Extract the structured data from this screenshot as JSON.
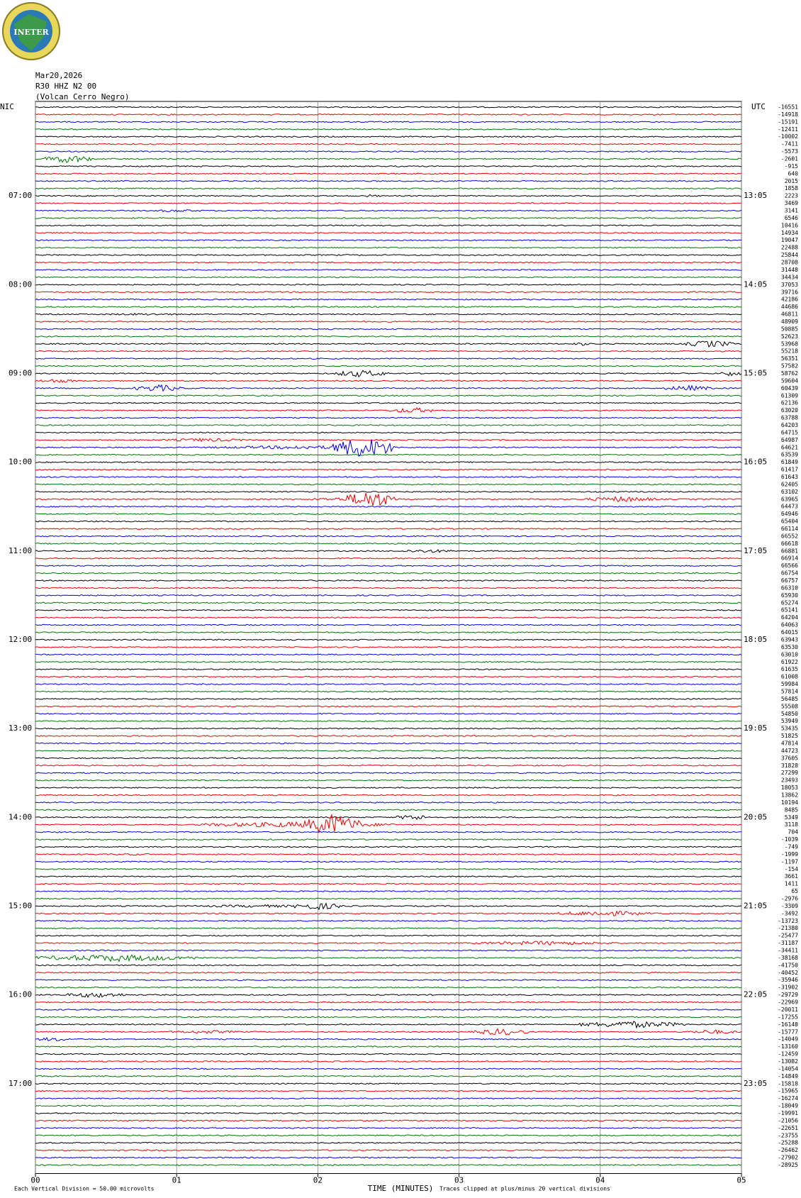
{
  "logo": {
    "text": "INETER"
  },
  "header": {
    "date": "Mar20,2026",
    "station": "R30 HHZ N2 00",
    "location": "(Volcan Cerro Negro)"
  },
  "left_zone": "NIC",
  "right_zone": "UTC",
  "left_hours": [
    "07:00",
    "08:00",
    "09:00",
    "10:00",
    "11:00",
    "12:00",
    "13:00",
    "14:00",
    "15:00",
    "16:00",
    "17:00"
  ],
  "right_hours": [
    "13:05",
    "14:05",
    "15:05",
    "16:05",
    "17:05",
    "18:05",
    "19:05",
    "20:05",
    "21:05",
    "22:05",
    "23:05"
  ],
  "trace_offsets": [
    -16551,
    -14918,
    -15191,
    -12411,
    -10002,
    -7411,
    -5573,
    -2601,
    -915,
    640,
    2015,
    1858,
    2223,
    3469,
    3141,
    6546,
    10416,
    14934,
    19047,
    22488,
    25844,
    28708,
    31448,
    34434,
    37053,
    39716,
    42186,
    44686,
    46811,
    48909,
    50885,
    52623,
    53968,
    55218,
    56351,
    57582,
    58762,
    59604,
    60439,
    61309,
    62136,
    63020,
    63788,
    64203,
    64715,
    64987,
    64621,
    63539,
    61849,
    61417,
    61643,
    62405,
    63102,
    63965,
    64473,
    64946,
    65404,
    66114,
    66552,
    66618,
    66881,
    66914,
    66566,
    66754,
    66757,
    66310,
    65930,
    65274,
    65141,
    64204,
    64063,
    64015,
    63943,
    63530,
    63010,
    61922,
    61635,
    61008,
    59984,
    57814,
    56485,
    55508,
    54850,
    53949,
    53435,
    51825,
    47814,
    44723,
    37605,
    31828,
    27299,
    23493,
    18053,
    13862,
    10194,
    8485,
    5349,
    3118,
    704,
    -1039,
    -749,
    -1999,
    -1197,
    -154,
    3661,
    1411,
    65,
    -2976,
    -3309,
    -3492,
    -13723,
    -21380,
    -25477,
    -31187,
    -34411,
    -38168,
    -41750,
    -40452,
    -35946,
    -31902,
    -29729,
    -22969,
    -20011,
    -17255,
    -16148,
    -15777,
    -14049,
    -13160,
    -12459,
    -13082,
    -14054,
    -14849,
    -15818,
    -15965,
    -16274,
    -18049,
    -19991,
    -21056,
    -22651,
    -23755,
    -25288,
    -26462,
    -27902,
    -28925
  ],
  "x_axis": {
    "title": "TIME (MINUTES)",
    "xlim": [
      0,
      5
    ],
    "xticks": [
      {
        "value": 0,
        "label": "00"
      },
      {
        "value": 1,
        "label": "01"
      },
      {
        "value": 2,
        "label": "02"
      },
      {
        "value": 3,
        "label": "03"
      },
      {
        "value": 4,
        "label": "04"
      },
      {
        "value": 5,
        "label": "05"
      }
    ]
  },
  "footer": {
    "scale": "Each Vertical Division =   50.00 microvolts",
    "clip": "Traces clipped at plus/minus 20 vertical divisions"
  }
}
